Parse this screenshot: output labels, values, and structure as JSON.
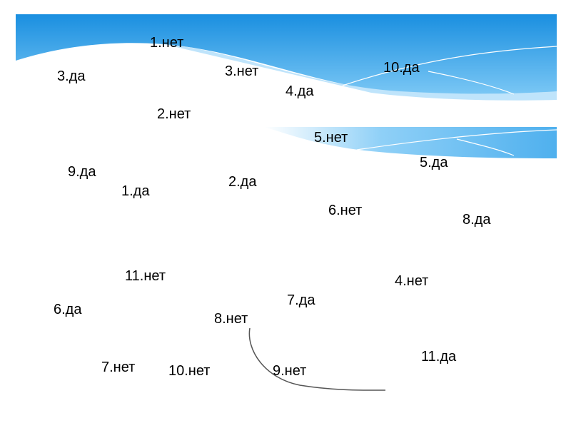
{
  "labels": [
    "1.нет",
    "3.да",
    "3.нет",
    "10.да",
    "4.да",
    "2.нет",
    "5.нет",
    "5.да",
    "9.да",
    "1.да",
    "2.да",
    "6.нет",
    "8.да",
    "11.нет",
    "4.нет",
    "7.да",
    "6.да",
    "8.нет",
    "11.да",
    "7.нет",
    "10.нет",
    "9.нет"
  ]
}
